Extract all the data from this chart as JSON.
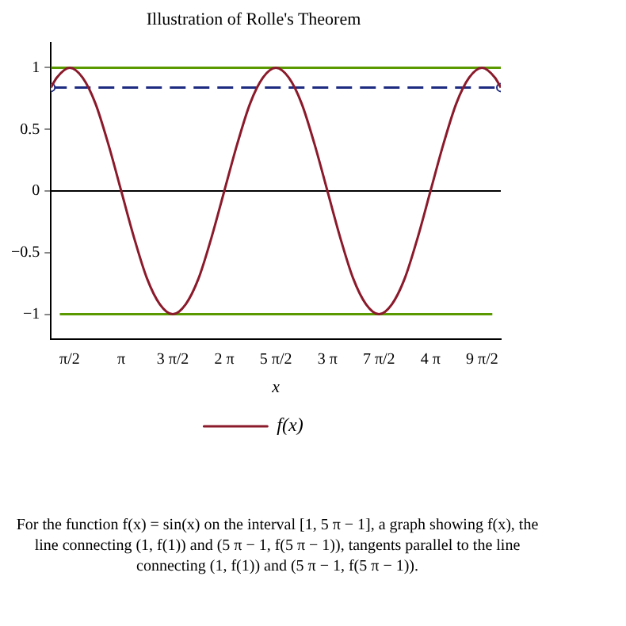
{
  "chart_data": {
    "type": "line",
    "title": "Illustration of Rolle's Theorem",
    "xlabel": "x",
    "xlim": [
      1,
      14.708
    ],
    "ylim": [
      -1.2,
      1.2
    ],
    "xticks": [
      {
        "value": 1.571,
        "label": "π/2"
      },
      {
        "value": 3.142,
        "label": "π"
      },
      {
        "value": 4.712,
        "label": "3 π/2"
      },
      {
        "value": 6.283,
        "label": "2 π"
      },
      {
        "value": 7.854,
        "label": "5 π/2"
      },
      {
        "value": 9.425,
        "label": "3 π"
      },
      {
        "value": 10.996,
        "label": "7 π/2"
      },
      {
        "value": 12.566,
        "label": "4 π"
      },
      {
        "value": 14.137,
        "label": "9 π/2"
      }
    ],
    "yticks": [
      {
        "value": -1,
        "label": "−1"
      },
      {
        "value": -0.5,
        "label": "−0.5"
      },
      0,
      0.5,
      1
    ],
    "grid": false,
    "ref_lines": [
      {
        "axis": "y",
        "value": 0,
        "color": "#000000"
      }
    ],
    "legend": "bottom",
    "marker": "none",
    "line_style": "solid",
    "series": [
      {
        "name": "f(x)",
        "color": "#8b1a2b",
        "x": [
          1,
          1.178,
          1.571,
          1.963,
          2.356,
          2.749,
          3.142,
          3.534,
          3.927,
          4.32,
          4.712,
          5.105,
          5.498,
          5.89,
          6.283,
          6.676,
          7.069,
          7.461,
          7.854,
          8.247,
          8.639,
          9.032,
          9.425,
          9.817,
          10.21,
          10.603,
          10.996,
          11.388,
          11.781,
          12.174,
          12.566,
          12.959,
          13.352,
          13.744,
          14.137,
          14.53,
          14.708
        ],
        "values": [
          0.84,
          0.92,
          1,
          0.92,
          0.71,
          0.38,
          0,
          -0.38,
          -0.71,
          -0.92,
          -1,
          -0.92,
          -0.71,
          -0.38,
          0,
          0.38,
          0.71,
          0.92,
          1,
          0.92,
          0.71,
          0.38,
          0,
          -0.38,
          -0.71,
          -0.92,
          -1,
          -0.92,
          -0.71,
          -0.38,
          0,
          0.38,
          0.71,
          0.92,
          1,
          0.92,
          0.84
        ]
      },
      {
        "color": "#1c2a80",
        "x": [
          1,
          14.708
        ],
        "values": [
          0.84,
          0.84
        ],
        "line_style": "dashed",
        "marker": "circle"
      },
      {
        "color": "#5a9a00",
        "x": [
          1,
          14.708
        ],
        "values": [
          1,
          1
        ]
      },
      {
        "color": "#5a9a00",
        "x": [
          1.27,
          14.45
        ],
        "values": [
          -1,
          -1
        ]
      }
    ],
    "annotations": [
      "For the function f(x) = sin(x) on the interval [1, 5 π − 1], a graph showing f(x), the line connecting (1, f(1)) and (5 π − 1, f(5 π − 1)), tangents parallel to the line connecting (1, f(1)) and (5 π − 1, f(5 π − 1))."
    ]
  }
}
